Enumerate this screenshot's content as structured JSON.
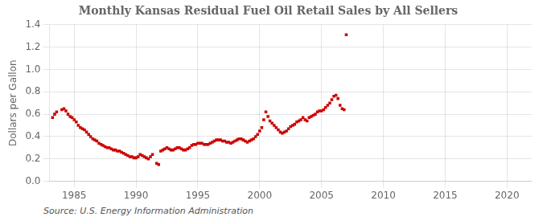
{
  "chart_data": {
    "type": "scatter",
    "title": "Monthly Kansas Residual Fuel Oil Retail Sales by All Sellers",
    "ylabel": "Dollars per Gallon",
    "source": "Source: U.S. Energy Information Administration",
    "xlim": [
      1983.0,
      2022.0
    ],
    "ylim": [
      0.0,
      1.4
    ],
    "xticks": [
      1985,
      1990,
      1995,
      2000,
      2005,
      2010,
      2015,
      2020
    ],
    "yticks": [
      {
        "value": 0.0,
        "label": "0.0"
      },
      0.2,
      0.4,
      0.6,
      0.8,
      {
        "value": 1.0,
        "label": "1.0"
      },
      1.2,
      1.4
    ],
    "grid": true,
    "color": "#cc0000",
    "marker": "square",
    "x": [
      1983.25,
      1983.42,
      1983.58,
      1984.0,
      1984.17,
      1984.33,
      1984.5,
      1984.67,
      1984.83,
      1985.0,
      1985.17,
      1985.33,
      1985.5,
      1985.67,
      1985.83,
      1986.0,
      1986.17,
      1986.33,
      1986.5,
      1986.67,
      1986.83,
      1987.0,
      1987.17,
      1987.33,
      1987.5,
      1987.67,
      1987.83,
      1988.0,
      1988.17,
      1988.33,
      1988.5,
      1988.67,
      1988.83,
      1989.0,
      1989.17,
      1989.33,
      1989.5,
      1989.67,
      1989.83,
      1990.0,
      1990.17,
      1990.33,
      1990.5,
      1990.67,
      1990.83,
      1991.0,
      1991.17,
      1991.33,
      1991.67,
      1991.83,
      1992.0,
      1992.17,
      1992.33,
      1992.5,
      1992.67,
      1992.83,
      1993.0,
      1993.17,
      1993.33,
      1993.5,
      1993.67,
      1993.83,
      1994.0,
      1994.17,
      1994.33,
      1994.5,
      1994.67,
      1994.83,
      1995.0,
      1995.17,
      1995.33,
      1995.5,
      1995.67,
      1995.83,
      1996.0,
      1996.17,
      1996.33,
      1996.5,
      1996.67,
      1996.83,
      1997.0,
      1997.17,
      1997.33,
      1997.5,
      1997.67,
      1997.83,
      1998.0,
      1998.17,
      1998.33,
      1998.5,
      1998.67,
      1998.83,
      1999.0,
      1999.17,
      1999.33,
      1999.5,
      1999.67,
      1999.83,
      2000.0,
      2000.17,
      2000.33,
      2000.5,
      2000.67,
      2000.83,
      2001.0,
      2001.17,
      2001.33,
      2001.5,
      2001.67,
      2001.83,
      2002.0,
      2002.17,
      2002.33,
      2002.5,
      2002.67,
      2002.83,
      2003.0,
      2003.17,
      2003.33,
      2003.5,
      2003.67,
      2003.83,
      2004.0,
      2004.17,
      2004.33,
      2004.5,
      2004.67,
      2004.83,
      2005.0,
      2005.17,
      2005.33,
      2005.5,
      2005.67,
      2005.83,
      2006.0,
      2006.17,
      2006.33,
      2006.5,
      2006.67,
      2006.83,
      2007.0
    ],
    "values": [
      0.57,
      0.6,
      0.62,
      0.64,
      0.65,
      0.63,
      0.6,
      0.58,
      0.57,
      0.55,
      0.53,
      0.5,
      0.48,
      0.47,
      0.46,
      0.44,
      0.42,
      0.4,
      0.38,
      0.37,
      0.36,
      0.34,
      0.33,
      0.32,
      0.31,
      0.3,
      0.3,
      0.29,
      0.28,
      0.28,
      0.27,
      0.27,
      0.26,
      0.25,
      0.24,
      0.23,
      0.22,
      0.22,
      0.21,
      0.21,
      0.22,
      0.24,
      0.23,
      0.22,
      0.21,
      0.2,
      0.22,
      0.24,
      0.16,
      0.15,
      0.27,
      0.28,
      0.29,
      0.3,
      0.29,
      0.28,
      0.28,
      0.29,
      0.3,
      0.3,
      0.29,
      0.28,
      0.28,
      0.29,
      0.3,
      0.32,
      0.33,
      0.33,
      0.34,
      0.34,
      0.34,
      0.33,
      0.33,
      0.33,
      0.34,
      0.35,
      0.36,
      0.37,
      0.37,
      0.37,
      0.36,
      0.36,
      0.35,
      0.35,
      0.34,
      0.35,
      0.36,
      0.37,
      0.38,
      0.38,
      0.37,
      0.36,
      0.35,
      0.36,
      0.37,
      0.38,
      0.4,
      0.42,
      0.45,
      0.48,
      0.55,
      0.62,
      0.58,
      0.54,
      0.52,
      0.5,
      0.48,
      0.46,
      0.44,
      0.43,
      0.44,
      0.45,
      0.47,
      0.49,
      0.5,
      0.51,
      0.53,
      0.54,
      0.55,
      0.57,
      0.55,
      0.54,
      0.57,
      0.58,
      0.59,
      0.6,
      0.62,
      0.63,
      0.63,
      0.64,
      0.66,
      0.68,
      0.7,
      0.73,
      0.76,
      0.77,
      0.74,
      0.68,
      0.65,
      0.64,
      1.31
    ]
  }
}
